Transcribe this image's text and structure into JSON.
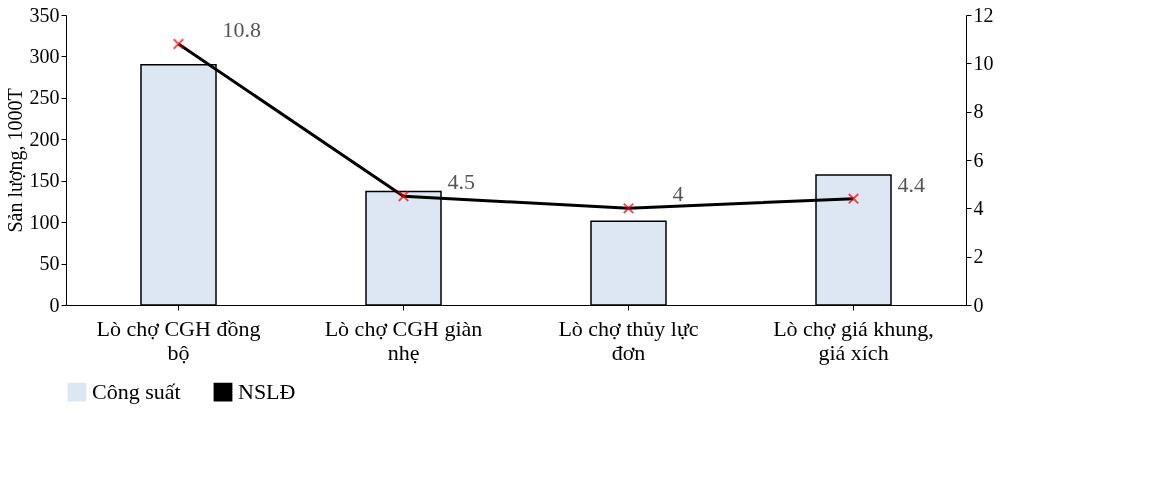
{
  "chart_data": {
    "type": "bar",
    "ylabel": "Sản lượng, 1000T",
    "categories": [
      "Lò chợ CGH đồng bộ",
      "Lò chợ CGH giàn nhẹ",
      "Lò chợ thủy lực đơn",
      "Lò chợ giá khung, giá xích"
    ],
    "series": [
      {
        "name": "Công suất",
        "color": "#dde7f3",
        "values": [
          290,
          137,
          101,
          157
        ]
      },
      {
        "name": "NSLĐ",
        "type": "line",
        "axis": "y2",
        "color": "#000000",
        "marker": "cross",
        "values": [
          10.8,
          4.5,
          4,
          4.4
        ],
        "value_labels": [
          "10.8",
          "4.5",
          "4",
          "4.4"
        ]
      }
    ],
    "ylim": [
      0,
      350
    ],
    "yticks": [
      0,
      50,
      100,
      150,
      200,
      250,
      300,
      350
    ],
    "y2lim": [
      0,
      12
    ],
    "y2ticks": [
      0,
      2,
      4,
      6,
      8,
      10,
      12
    ],
    "grid": false,
    "legend": "bottom"
  }
}
